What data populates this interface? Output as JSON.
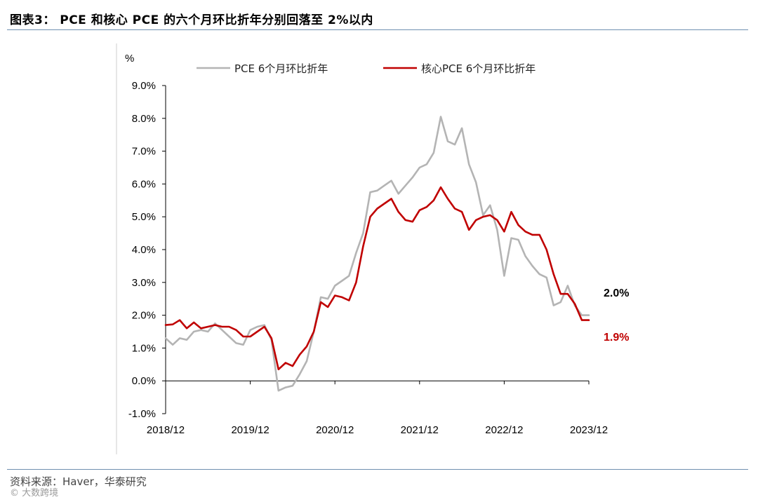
{
  "header": {
    "title": "图表3： PCE 和核心 PCE 的六个月环比折年分别回落至 2%以内"
  },
  "footer": {
    "source": "资料来源：Haver，华泰研究",
    "watermark": "© 大数跨境"
  },
  "colors": {
    "pce": "#b4b4b4",
    "core": "#c00000",
    "axis": "#000000",
    "rule": "#6f8fb0"
  },
  "chart_data": {
    "type": "line",
    "title": "",
    "ylabel": "%",
    "ylim": [
      -1.0,
      9.0
    ],
    "y_ticks": [
      {
        "value": -1.0,
        "label": "-1.0%"
      },
      {
        "value": 0.0,
        "label": "0.0%"
      },
      {
        "value": 1.0,
        "label": "1.0%"
      },
      {
        "value": 2.0,
        "label": "2.0%"
      },
      {
        "value": 3.0,
        "label": "3.0%"
      },
      {
        "value": 4.0,
        "label": "4.0%"
      },
      {
        "value": 5.0,
        "label": "5.0%"
      },
      {
        "value": 6.0,
        "label": "6.0%"
      },
      {
        "value": 7.0,
        "label": "7.0%"
      },
      {
        "value": 8.0,
        "label": "8.0%"
      },
      {
        "value": 9.0,
        "label": "9.0%"
      }
    ],
    "x_ticks": [
      {
        "index": 0,
        "label": "2018/12"
      },
      {
        "index": 12,
        "label": "2019/12"
      },
      {
        "index": 24,
        "label": "2020/12"
      },
      {
        "index": 36,
        "label": "2021/12"
      },
      {
        "index": 48,
        "label": "2022/12"
      },
      {
        "index": 60,
        "label": "2023/12"
      }
    ],
    "legend_position": "top",
    "series": [
      {
        "name": "PCE 6个月环比折年",
        "color": "#b4b4b4",
        "values": [
          1.3,
          1.1,
          1.3,
          1.25,
          1.5,
          1.55,
          1.5,
          1.75,
          1.55,
          1.35,
          1.15,
          1.1,
          1.55,
          1.65,
          1.7,
          1.25,
          -0.3,
          -0.2,
          -0.15,
          0.2,
          0.6,
          1.5,
          2.55,
          2.5,
          2.9,
          3.05,
          3.2,
          3.9,
          4.5,
          5.75,
          5.8,
          5.95,
          6.1,
          5.7,
          5.95,
          6.2,
          6.5,
          6.6,
          6.95,
          8.05,
          7.3,
          7.2,
          7.7,
          6.6,
          6.05,
          5.05,
          5.35,
          4.6,
          3.2,
          4.35,
          4.3,
          3.8,
          3.5,
          3.25,
          3.15,
          2.3,
          2.4,
          2.9,
          2.3,
          2.0,
          2.0
        ],
        "end_label": "2.0%"
      },
      {
        "name": "核心PCE 6个月环比折年",
        "color": "#c00000",
        "values": [
          1.7,
          1.72,
          1.85,
          1.6,
          1.78,
          1.6,
          1.65,
          1.7,
          1.65,
          1.65,
          1.55,
          1.35,
          1.35,
          1.5,
          1.65,
          1.3,
          0.35,
          0.55,
          0.45,
          0.8,
          1.05,
          1.5,
          2.4,
          2.25,
          2.6,
          2.55,
          2.45,
          3.0,
          4.1,
          5.0,
          5.25,
          5.4,
          5.55,
          5.15,
          4.9,
          4.85,
          5.2,
          5.3,
          5.5,
          5.9,
          5.55,
          5.25,
          5.15,
          4.6,
          4.9,
          5.0,
          5.05,
          4.9,
          4.55,
          5.15,
          4.75,
          4.55,
          4.45,
          4.45,
          4.0,
          3.25,
          2.65,
          2.65,
          2.35,
          1.85,
          1.85
        ],
        "end_label": "1.9%"
      }
    ]
  }
}
